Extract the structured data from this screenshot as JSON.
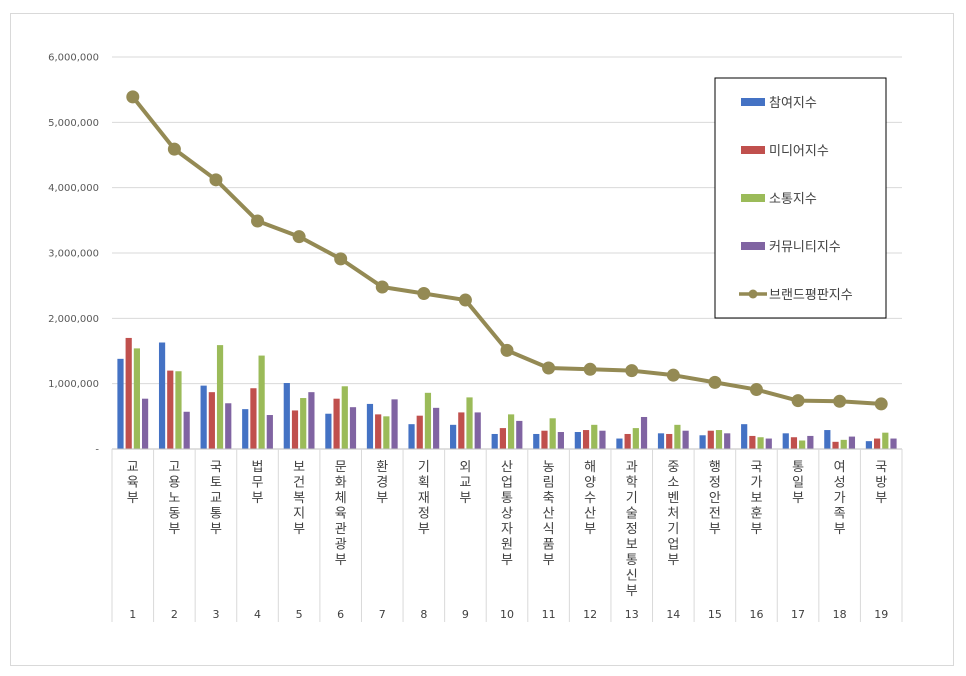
{
  "chart_data": {
    "type": "bar",
    "title": "",
    "xlabel": "",
    "ylabel": "",
    "ylim": [
      0,
      6000000
    ],
    "yticks": [
      "-",
      "1,000,000",
      "2,000,000",
      "3,000,000",
      "4,000,000",
      "5,000,000",
      "6,000,000"
    ],
    "grid": true,
    "legend_position": "top-right",
    "categories": [
      "교육부",
      "고용노동부",
      "국토교통부",
      "법무부",
      "보건복지부",
      "문화체육관광부",
      "환경부",
      "기획재정부",
      "외교부",
      "산업통상자원부",
      "농림축산식품부",
      "해양수산부",
      "과학기술정보통신부",
      "중소벤처기업부",
      "행정안전부",
      "국가보훈부",
      "통일부",
      "여성가족부",
      "국방부"
    ],
    "ranks": [
      "1",
      "2",
      "3",
      "4",
      "5",
      "6",
      "7",
      "8",
      "9",
      "10",
      "11",
      "12",
      "13",
      "14",
      "15",
      "16",
      "17",
      "18",
      "19"
    ],
    "series": [
      {
        "name": "참여지수",
        "type": "bar",
        "color": "#4472c4",
        "values": [
          1380000,
          1630000,
          970000,
          610000,
          1010000,
          540000,
          690000,
          380000,
          370000,
          230000,
          230000,
          260000,
          160000,
          240000,
          210000,
          380000,
          240000,
          290000,
          120000
        ]
      },
      {
        "name": "미디어지수",
        "type": "bar",
        "color": "#c0504d",
        "values": [
          1700000,
          1200000,
          870000,
          930000,
          590000,
          770000,
          530000,
          510000,
          560000,
          320000,
          280000,
          290000,
          230000,
          230000,
          280000,
          200000,
          180000,
          110000,
          160000
        ]
      },
      {
        "name": "소통지수",
        "type": "bar",
        "color": "#9bbb59",
        "values": [
          1540000,
          1190000,
          1590000,
          1430000,
          780000,
          960000,
          500000,
          860000,
          790000,
          530000,
          470000,
          370000,
          320000,
          370000,
          290000,
          180000,
          130000,
          140000,
          250000
        ]
      },
      {
        "name": "커뮤니티지수",
        "type": "bar",
        "color": "#8064a2",
        "values": [
          770000,
          570000,
          700000,
          520000,
          870000,
          640000,
          760000,
          630000,
          560000,
          430000,
          260000,
          280000,
          490000,
          280000,
          240000,
          160000,
          200000,
          190000,
          160000
        ]
      },
      {
        "name": "브랜드평판지수",
        "type": "line",
        "color": "#948a54",
        "values": [
          5390000,
          4590000,
          4120000,
          3490000,
          3250000,
          2910000,
          2480000,
          2380000,
          2280000,
          1510000,
          1240000,
          1220000,
          1200000,
          1130000,
          1020000,
          910000,
          740000,
          730000,
          690000
        ]
      }
    ]
  }
}
